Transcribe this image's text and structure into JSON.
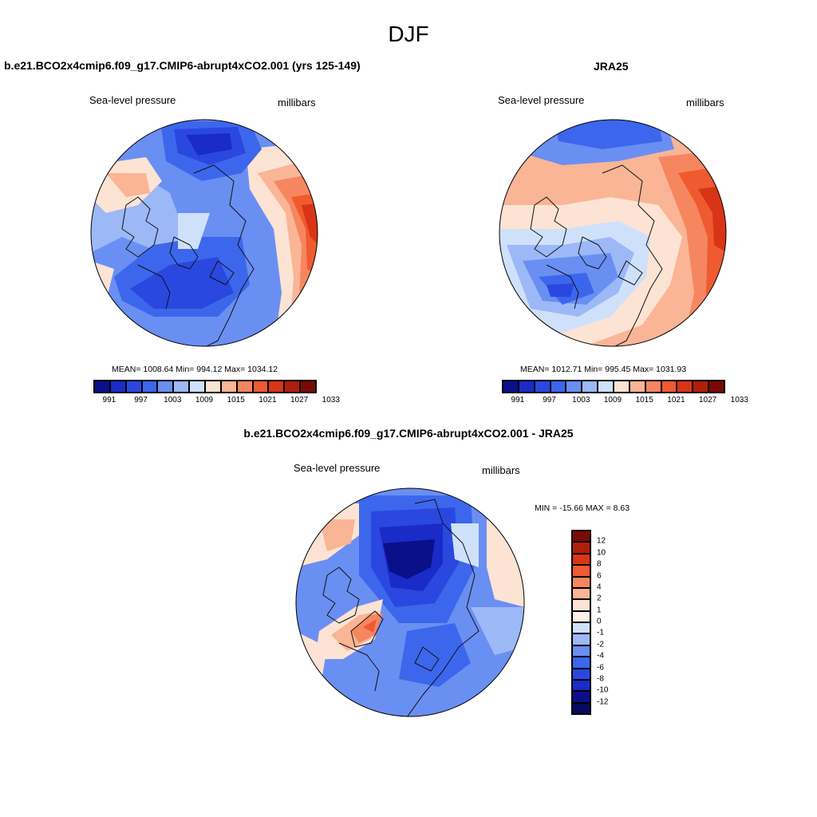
{
  "page_title": "DJF",
  "colors": {
    "palette": [
      "#0a0f8a",
      "#1a2bc7",
      "#2a48e0",
      "#3c67ec",
      "#6a8ff2",
      "#9db8f7",
      "#cfe0fb",
      "#fde3d3",
      "#f9b596",
      "#f68660",
      "#ef5a30",
      "#d93416",
      "#b11e0b",
      "#7a0a05"
    ],
    "coastline": "#111111"
  },
  "icons": [
    "north-polar-stereographic-map"
  ],
  "panels": {
    "model": {
      "title": "b.e21.BCO2x4cmip6.f09_g17.CMIP6-abrupt4xCO2.001 (yrs 125-149)",
      "variable": "Sea-level pressure",
      "units": "millibars",
      "stats": "MEAN= 1008.64  Min= 994.12  Max= 1034.12",
      "colorbar_labels": [
        "991",
        "997",
        "1003",
        "1009",
        "1015",
        "1021",
        "1027",
        "1033"
      ]
    },
    "obs": {
      "title": "JRA25",
      "variable": "Sea-level pressure",
      "units": "millibars",
      "stats": "MEAN= 1012.71  Min= 995.45  Max= 1031.93",
      "colorbar_labels": [
        "991",
        "997",
        "1003",
        "1009",
        "1015",
        "1021",
        "1027",
        "1033"
      ]
    },
    "diff": {
      "title": "b.e21.BCO2x4cmip6.f09_g17.CMIP6-abrupt4xCO2.001 - JRA25",
      "variable": "Sea-level pressure",
      "units": "millibars",
      "stats": "MIN = -15.66 MAX =   8.63",
      "colorbar_labels": [
        "12",
        "10",
        "8",
        "6",
        "4",
        "2",
        "1",
        "0",
        "-1",
        "-2",
        "-4",
        "-6",
        "-8",
        "-10",
        "-12"
      ]
    }
  },
  "levels": {
    "absolute_colorbar": [
      991,
      994,
      997,
      1000,
      1003,
      1006,
      1009,
      1012,
      1015,
      1018,
      1021,
      1024,
      1027,
      1030,
      1033
    ],
    "difference_colorbar": [
      12,
      10,
      8,
      6,
      4,
      2,
      1,
      0,
      -1,
      -2,
      -4,
      -6,
      -8,
      -10,
      -12
    ]
  }
}
